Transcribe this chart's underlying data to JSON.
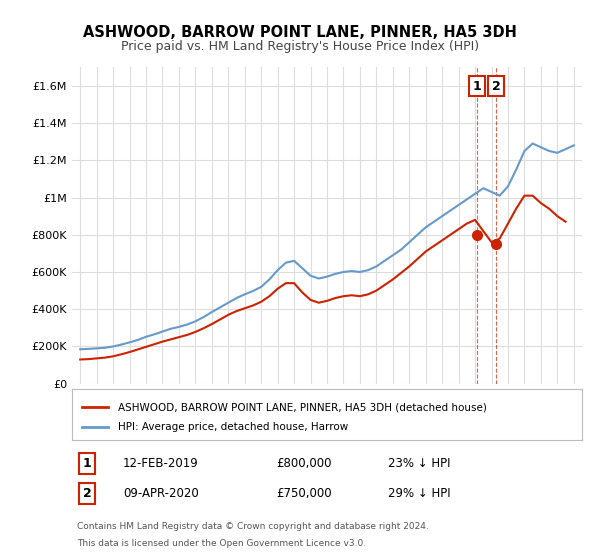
{
  "title": "ASHWOOD, BARROW POINT LANE, PINNER, HA5 3DH",
  "subtitle": "Price paid vs. HM Land Registry's House Price Index (HPI)",
  "xlabel": "",
  "ylabel": "",
  "ylim": [
    0,
    1700000
  ],
  "xlim": [
    1994.5,
    2025.5
  ],
  "yticks": [
    0,
    200000,
    400000,
    600000,
    800000,
    1000000,
    1200000,
    1400000,
    1600000
  ],
  "ytick_labels": [
    "£0",
    "£200K",
    "£400K",
    "£600K",
    "£800K",
    "£1M",
    "£1.2M",
    "£1.4M",
    "£1.6M"
  ],
  "xticks": [
    1995,
    1996,
    1997,
    1998,
    1999,
    2000,
    2001,
    2002,
    2003,
    2004,
    2005,
    2006,
    2007,
    2008,
    2009,
    2010,
    2011,
    2012,
    2013,
    2014,
    2015,
    2016,
    2017,
    2018,
    2019,
    2020,
    2021,
    2022,
    2023,
    2024,
    2025
  ],
  "hpi_color": "#6699cc",
  "price_color": "#cc2200",
  "dashed_line_color": "#cc2200",
  "marker1_color": "#cc2200",
  "marker2_color": "#cc2200",
  "sale1_x": 2019.11,
  "sale1_y": 800000,
  "sale2_x": 2020.27,
  "sale2_y": 750000,
  "legend_box_color": "#cc2200",
  "hpi_x": [
    1995,
    1995.5,
    1996,
    1996.5,
    1997,
    1997.5,
    1998,
    1998.5,
    1999,
    1999.5,
    2000,
    2000.5,
    2001,
    2001.5,
    2002,
    2002.5,
    2003,
    2003.5,
    2004,
    2004.5,
    2005,
    2005.5,
    2006,
    2006.5,
    2007,
    2007.5,
    2008,
    2008.5,
    2009,
    2009.5,
    2010,
    2010.5,
    2011,
    2011.5,
    2012,
    2012.5,
    2013,
    2013.5,
    2014,
    2014.5,
    2015,
    2015.5,
    2016,
    2016.5,
    2017,
    2017.5,
    2018,
    2018.5,
    2019,
    2019.5,
    2020,
    2020.5,
    2021,
    2021.5,
    2022,
    2022.5,
    2023,
    2023.5,
    2024,
    2024.5,
    2025
  ],
  "hpi_y": [
    185000,
    187000,
    190000,
    193000,
    200000,
    210000,
    222000,
    235000,
    252000,
    265000,
    280000,
    295000,
    305000,
    318000,
    335000,
    358000,
    385000,
    410000,
    435000,
    460000,
    480000,
    498000,
    520000,
    560000,
    610000,
    650000,
    660000,
    620000,
    580000,
    565000,
    575000,
    590000,
    600000,
    605000,
    600000,
    610000,
    630000,
    660000,
    690000,
    720000,
    760000,
    800000,
    840000,
    870000,
    900000,
    930000,
    960000,
    990000,
    1020000,
    1050000,
    1030000,
    1010000,
    1060000,
    1150000,
    1250000,
    1290000,
    1270000,
    1250000,
    1240000,
    1260000,
    1280000
  ],
  "price_x": [
    1995,
    1995.5,
    1996,
    1996.5,
    1997,
    1997.5,
    1998,
    1998.5,
    1999,
    1999.5,
    2000,
    2000.5,
    2001,
    2001.5,
    2002,
    2002.5,
    2003,
    2003.5,
    2004,
    2004.5,
    2005,
    2005.5,
    2006,
    2006.5,
    2007,
    2007.5,
    2008,
    2008.5,
    2009,
    2009.5,
    2010,
    2010.5,
    2011,
    2011.5,
    2012,
    2012.5,
    2013,
    2013.5,
    2014,
    2014.5,
    2015,
    2015.5,
    2016,
    2016.5,
    2017,
    2017.5,
    2018,
    2018.5,
    2019,
    2019.5,
    2020,
    2020.5,
    2021,
    2021.5,
    2022,
    2022.5,
    2023,
    2023.5,
    2024,
    2024.5
  ],
  "price_y": [
    130000,
    132000,
    136000,
    140000,
    147000,
    158000,
    170000,
    184000,
    198000,
    212000,
    226000,
    238000,
    250000,
    262000,
    278000,
    298000,
    320000,
    345000,
    370000,
    390000,
    405000,
    420000,
    440000,
    470000,
    510000,
    540000,
    540000,
    490000,
    450000,
    435000,
    445000,
    460000,
    470000,
    475000,
    470000,
    480000,
    500000,
    530000,
    560000,
    595000,
    630000,
    670000,
    710000,
    740000,
    770000,
    800000,
    830000,
    860000,
    880000,
    820000,
    760000,
    780000,
    860000,
    940000,
    1010000,
    1010000,
    970000,
    940000,
    900000,
    870000
  ],
  "footnote1": "Contains HM Land Registry data © Crown copyright and database right 2024.",
  "footnote2": "This data is licensed under the Open Government Licence v3.0.",
  "legend_label1": "ASHWOOD, BARROW POINT LANE, PINNER, HA5 3DH (detached house)",
  "legend_label2": "HPI: Average price, detached house, Harrow",
  "table_rows": [
    {
      "num": "1",
      "date": "12-FEB-2019",
      "price": "£800,000",
      "hpi": "23% ↓ HPI"
    },
    {
      "num": "2",
      "date": "09-APR-2020",
      "price": "£750,000",
      "hpi": "29% ↓ HPI"
    }
  ],
  "background_color": "#ffffff",
  "grid_color": "#dddddd"
}
